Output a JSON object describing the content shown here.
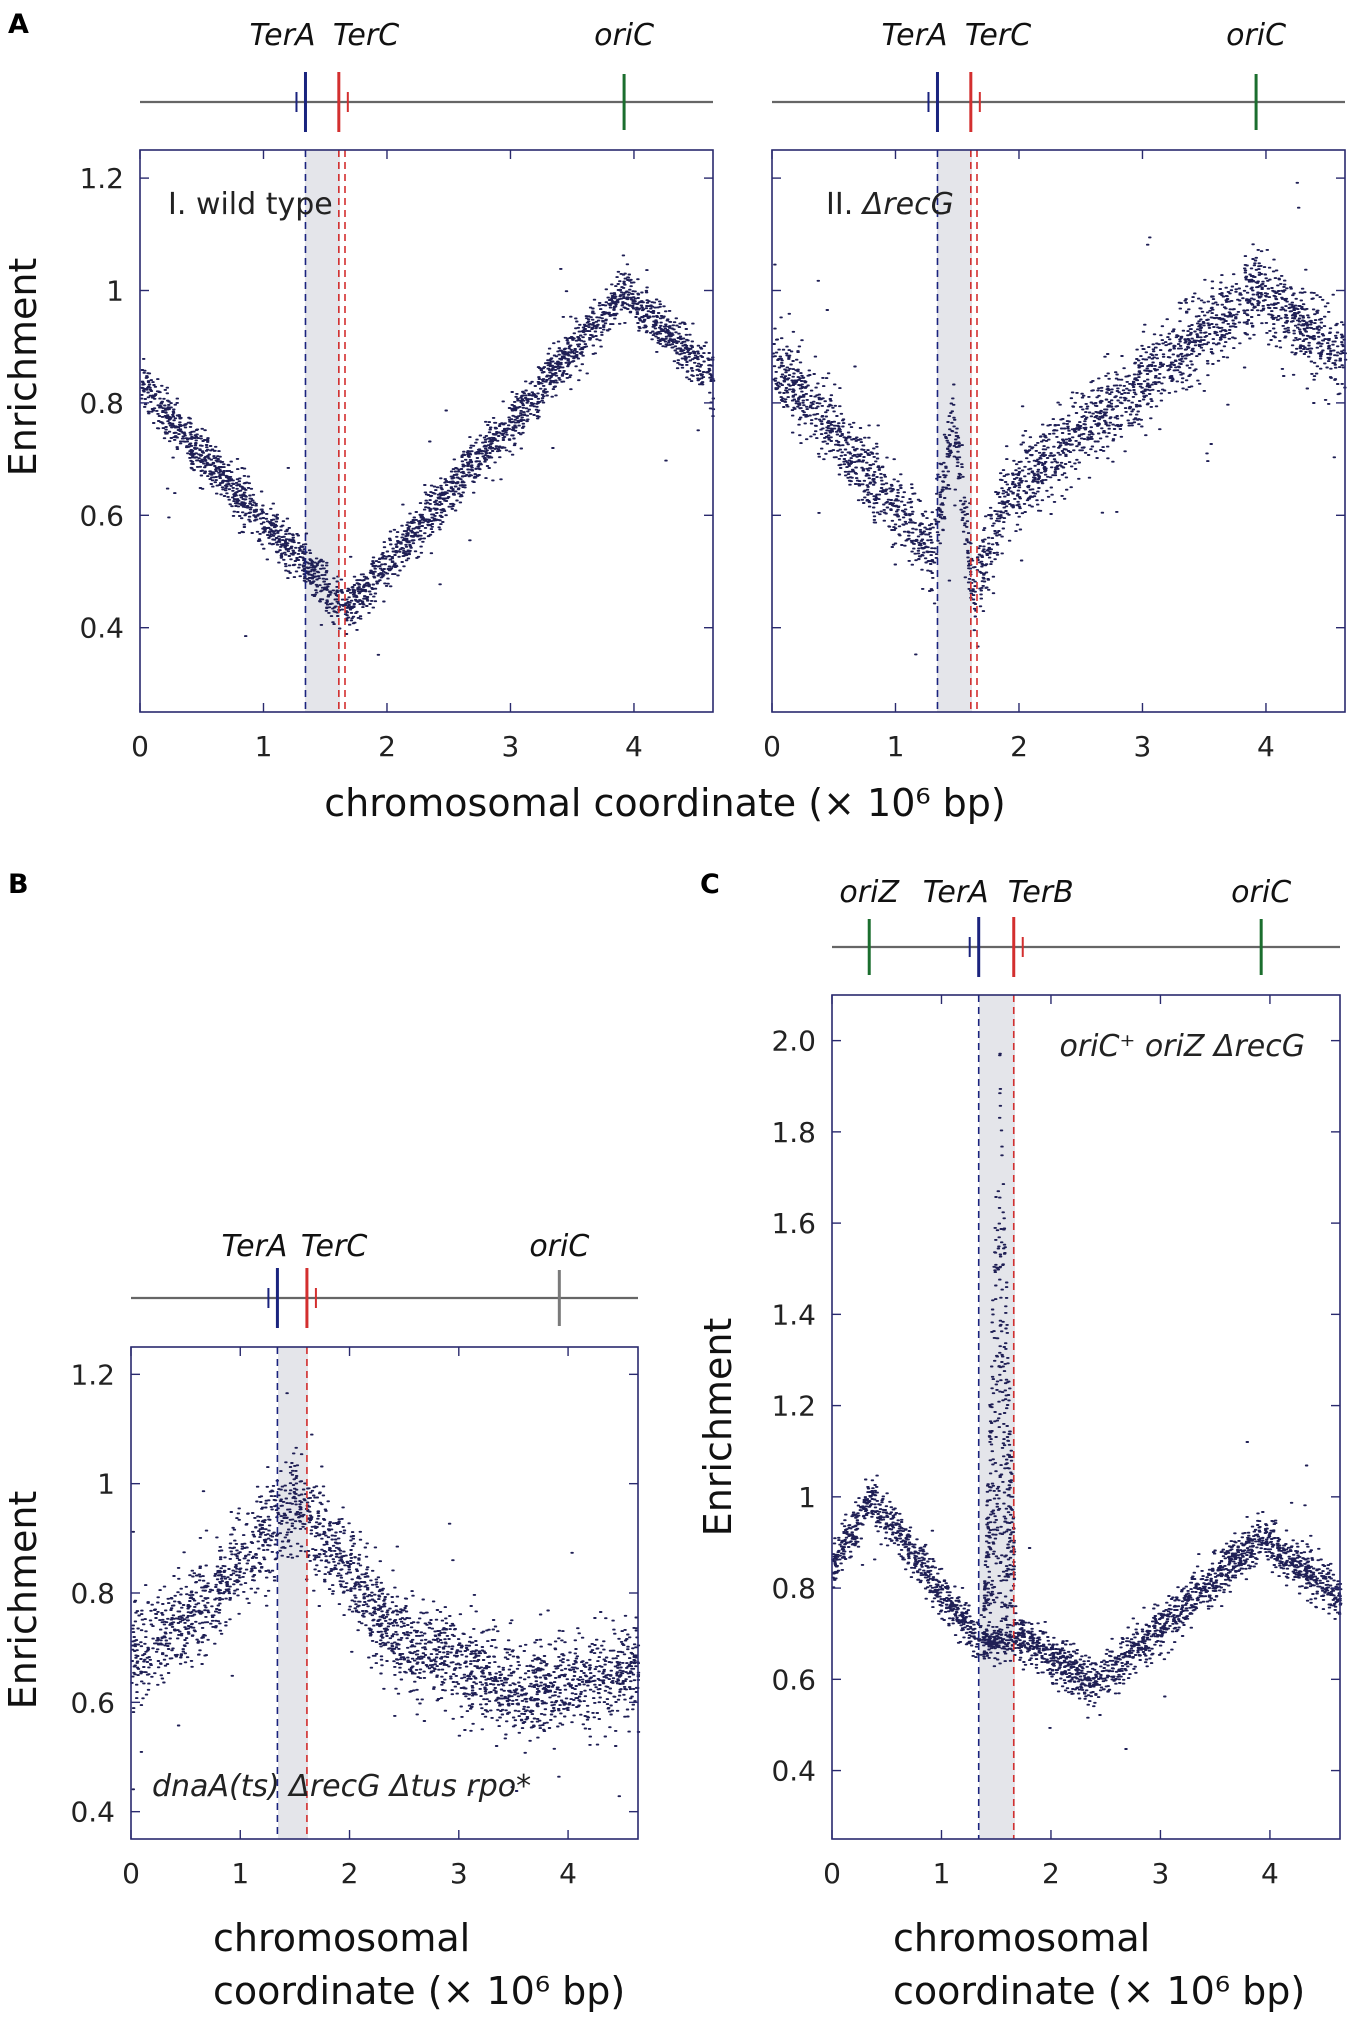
{
  "panel_letters": {
    "a": "A",
    "b": "B",
    "c": "C"
  },
  "colors": {
    "points": "#1f1f55",
    "axis": "#2a2a6e",
    "chromosome": "#666666",
    "terA": "#1a237e",
    "terC": "#d32f2f",
    "oriC": "#1b6e2e",
    "oriC_inactive": "#7a7a7a",
    "shade": "#e4e5ea"
  },
  "markers": {
    "terA": "TerA",
    "terC": "TerC",
    "terB": "TerB",
    "oriC": "oriC",
    "oriZ": "oriZ"
  },
  "shared_xlabel": "chromosomal coordinate (× 10⁶ bp)",
  "xlabel_b_line1": "chromosomal",
  "xlabel_b_line2": "coordinate (× 10⁶ bp)",
  "xlabel_c_line1": "chromosomal",
  "xlabel_c_line2": "coordinate (× 10⁶ bp)",
  "chart_data": [
    {
      "id": "A-I",
      "type": "scatter",
      "title": "I. wild type",
      "title_prefix": "I.",
      "title_main": "wild type",
      "xlabel": "chromosomal coordinate (× 10⁶ bp)",
      "ylabel": "Enrichment",
      "xlim": [
        0,
        4.64
      ],
      "ylim": [
        0.25,
        1.25
      ],
      "xticks": [
        0,
        1,
        2,
        3,
        4
      ],
      "yticks": [
        0.4,
        0.6,
        0.8,
        1.0,
        1.2
      ],
      "ytick_labels": [
        "0.4",
        "0.6",
        "0.8",
        "1",
        "1.2"
      ],
      "shaded_region": [
        1.34,
        1.61
      ],
      "dashed_lines": [
        {
          "x": 1.34,
          "color": "terA"
        },
        {
          "x": 1.61,
          "color": "terC"
        },
        {
          "x": 1.66,
          "color": "terC"
        }
      ],
      "markers": [
        {
          "name": "TerA",
          "x": 1.34
        },
        {
          "name": "TerC",
          "x": 1.61
        },
        {
          "name": "oriC",
          "x": 3.92
        }
      ],
      "profile": [
        [
          0,
          0.83
        ],
        [
          1.66,
          0.43
        ],
        [
          3.92,
          1.0
        ],
        [
          4.64,
          0.84
        ]
      ],
      "noise": 0.022
    },
    {
      "id": "A-II",
      "type": "scatter",
      "title": "II. ΔrecG",
      "title_prefix": "II.",
      "title_main": "ΔrecG",
      "xlabel": "chromosomal coordinate (× 10⁶ bp)",
      "ylabel": "",
      "xlim": [
        0,
        4.64
      ],
      "ylim": [
        0.25,
        1.25
      ],
      "xticks": [
        0,
        1,
        2,
        3,
        4
      ],
      "yticks": [
        0.4,
        0.6,
        0.8,
        1.0,
        1.2
      ],
      "shaded_region": [
        1.34,
        1.61
      ],
      "dashed_lines": [
        {
          "x": 1.34,
          "color": "terA"
        },
        {
          "x": 1.61,
          "color": "terC"
        },
        {
          "x": 1.66,
          "color": "terC"
        }
      ],
      "markers": [
        {
          "name": "TerA",
          "x": 1.34
        },
        {
          "name": "TerC",
          "x": 1.61
        },
        {
          "name": "oriC",
          "x": 3.92
        }
      ],
      "profile": [
        [
          0,
          0.88
        ],
        [
          1.3,
          0.53
        ],
        [
          1.46,
          0.77
        ],
        [
          1.63,
          0.46
        ],
        [
          1.9,
          0.64
        ],
        [
          3.92,
          1.0
        ],
        [
          4.64,
          0.88
        ]
      ],
      "noise": 0.035
    },
    {
      "id": "B",
      "type": "scatter",
      "title": "dnaA(ts) ΔrecG Δtus rpo*",
      "xlabel": "chromosomal coordinate (× 10⁶ bp)",
      "ylabel": "Enrichment",
      "xlim": [
        0,
        4.64
      ],
      "ylim": [
        0.35,
        1.25
      ],
      "xticks": [
        0,
        1,
        2,
        3,
        4
      ],
      "yticks": [
        0.4,
        0.6,
        0.8,
        1.0,
        1.2
      ],
      "ytick_labels": [
        "0.4",
        "0.6",
        "0.8",
        "1",
        "1.2"
      ],
      "shaded_region": [
        1.34,
        1.61
      ],
      "dashed_lines": [
        {
          "x": 1.34,
          "color": "terA"
        },
        {
          "x": 1.61,
          "color": "terC"
        }
      ],
      "markers": [
        {
          "name": "TerA",
          "x": 1.34
        },
        {
          "name": "TerC",
          "x": 1.61
        },
        {
          "name": "oriC",
          "x": 3.92,
          "inactive": true
        }
      ],
      "profile": [
        [
          0,
          0.68
        ],
        [
          0.7,
          0.78
        ],
        [
          1.5,
          0.97
        ],
        [
          2.4,
          0.72
        ],
        [
          3.6,
          0.62
        ],
        [
          4.64,
          0.66
        ]
      ],
      "noise": 0.045
    },
    {
      "id": "C",
      "type": "scatter",
      "title": "oriC⁺ oriZ ΔrecG",
      "xlabel": "chromosomal coordinate (× 10⁶ bp)",
      "ylabel": "Enrichment",
      "xlim": [
        0,
        4.64
      ],
      "ylim": [
        0.25,
        2.1
      ],
      "xticks": [
        0,
        1,
        2,
        3,
        4
      ],
      "yticks": [
        0.4,
        0.6,
        0.8,
        1.0,
        1.2,
        1.4,
        1.6,
        1.8,
        2.0
      ],
      "ytick_labels": [
        "0.4",
        "0.6",
        "0.8",
        "1",
        "1.2",
        "1.4",
        "1.6",
        "1.8",
        "2.0"
      ],
      "shaded_region": [
        1.34,
        1.66
      ],
      "dashed_lines": [
        {
          "x": 1.34,
          "color": "terA"
        },
        {
          "x": 1.66,
          "color": "terC"
        }
      ],
      "markers": [
        {
          "name": "oriZ",
          "x": 0.34
        },
        {
          "name": "TerA",
          "x": 1.34
        },
        {
          "name": "TerB",
          "x": 1.66
        },
        {
          "name": "oriC",
          "x": 3.92
        }
      ],
      "profile": [
        [
          0,
          0.84
        ],
        [
          0.34,
          1.0
        ],
        [
          1.34,
          0.68
        ],
        [
          1.66,
          0.7
        ],
        [
          2.4,
          0.59
        ],
        [
          3.92,
          0.91
        ],
        [
          4.64,
          0.78
        ]
      ],
      "noise": 0.025,
      "spike": {
        "x": [
          1.38,
          1.66
        ],
        "y": [
          0.75,
          2.05
        ]
      }
    }
  ]
}
